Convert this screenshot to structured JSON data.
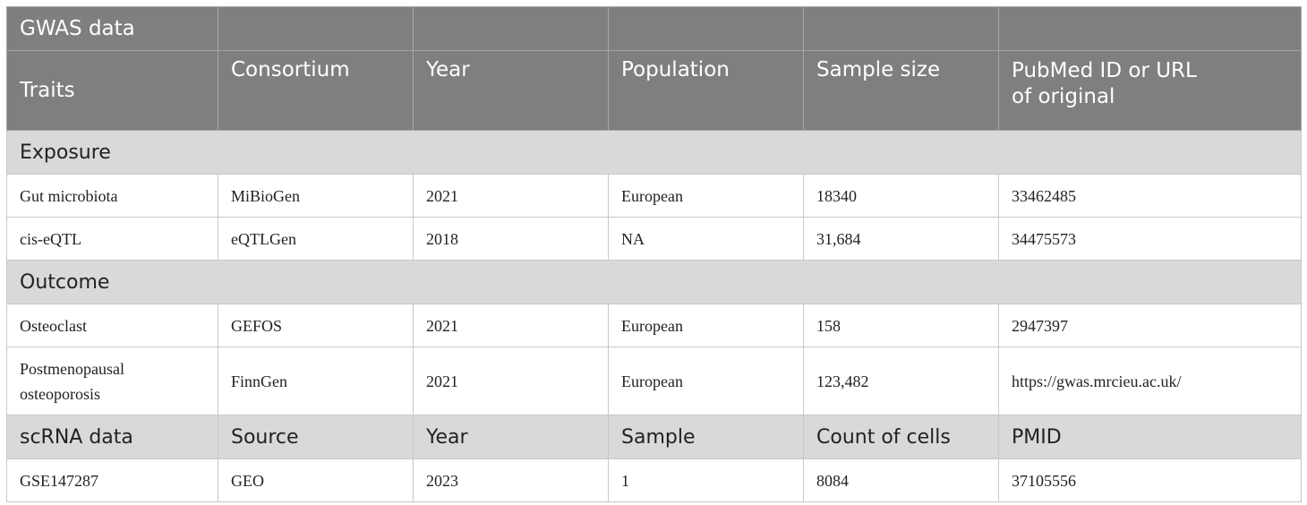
{
  "table": {
    "title": "GWAS data",
    "headers": [
      "Traits",
      "Consortium",
      "Year",
      "Population",
      "Sample size",
      "PubMed ID or URL of original"
    ],
    "header_last_lines": [
      "PubMed ID or URL",
      "of original"
    ],
    "sections": [
      {
        "label": "Exposure",
        "rows": [
          [
            "Gut microbiota",
            "MiBioGen",
            "2021",
            "European",
            "18340",
            "33462485"
          ],
          [
            "cis-eQTL",
            "eQTLGen",
            "2018",
            "NA",
            "31,684",
            "34475573"
          ]
        ]
      },
      {
        "label": "Outcome",
        "rows": [
          [
            "Osteoclast",
            "GEFOS",
            "2021",
            "European",
            "158",
            "2947397"
          ],
          [
            "Postmenopausal osteoporosis",
            "FinnGen",
            "2021",
            "European",
            "123,482",
            "https://gwas.mrcieu.ac.uk/"
          ]
        ],
        "wrapped_first_cell": [
          "Postmenopausal",
          "osteoporosis"
        ]
      }
    ],
    "scrna_header": [
      "scRNA data",
      "Source",
      "Year",
      "Sample",
      "Count of cells",
      "PMID"
    ],
    "scrna_rows": [
      [
        "GSE147287",
        "GEO",
        "2023",
        "1",
        "8084",
        "37105556"
      ]
    ]
  }
}
